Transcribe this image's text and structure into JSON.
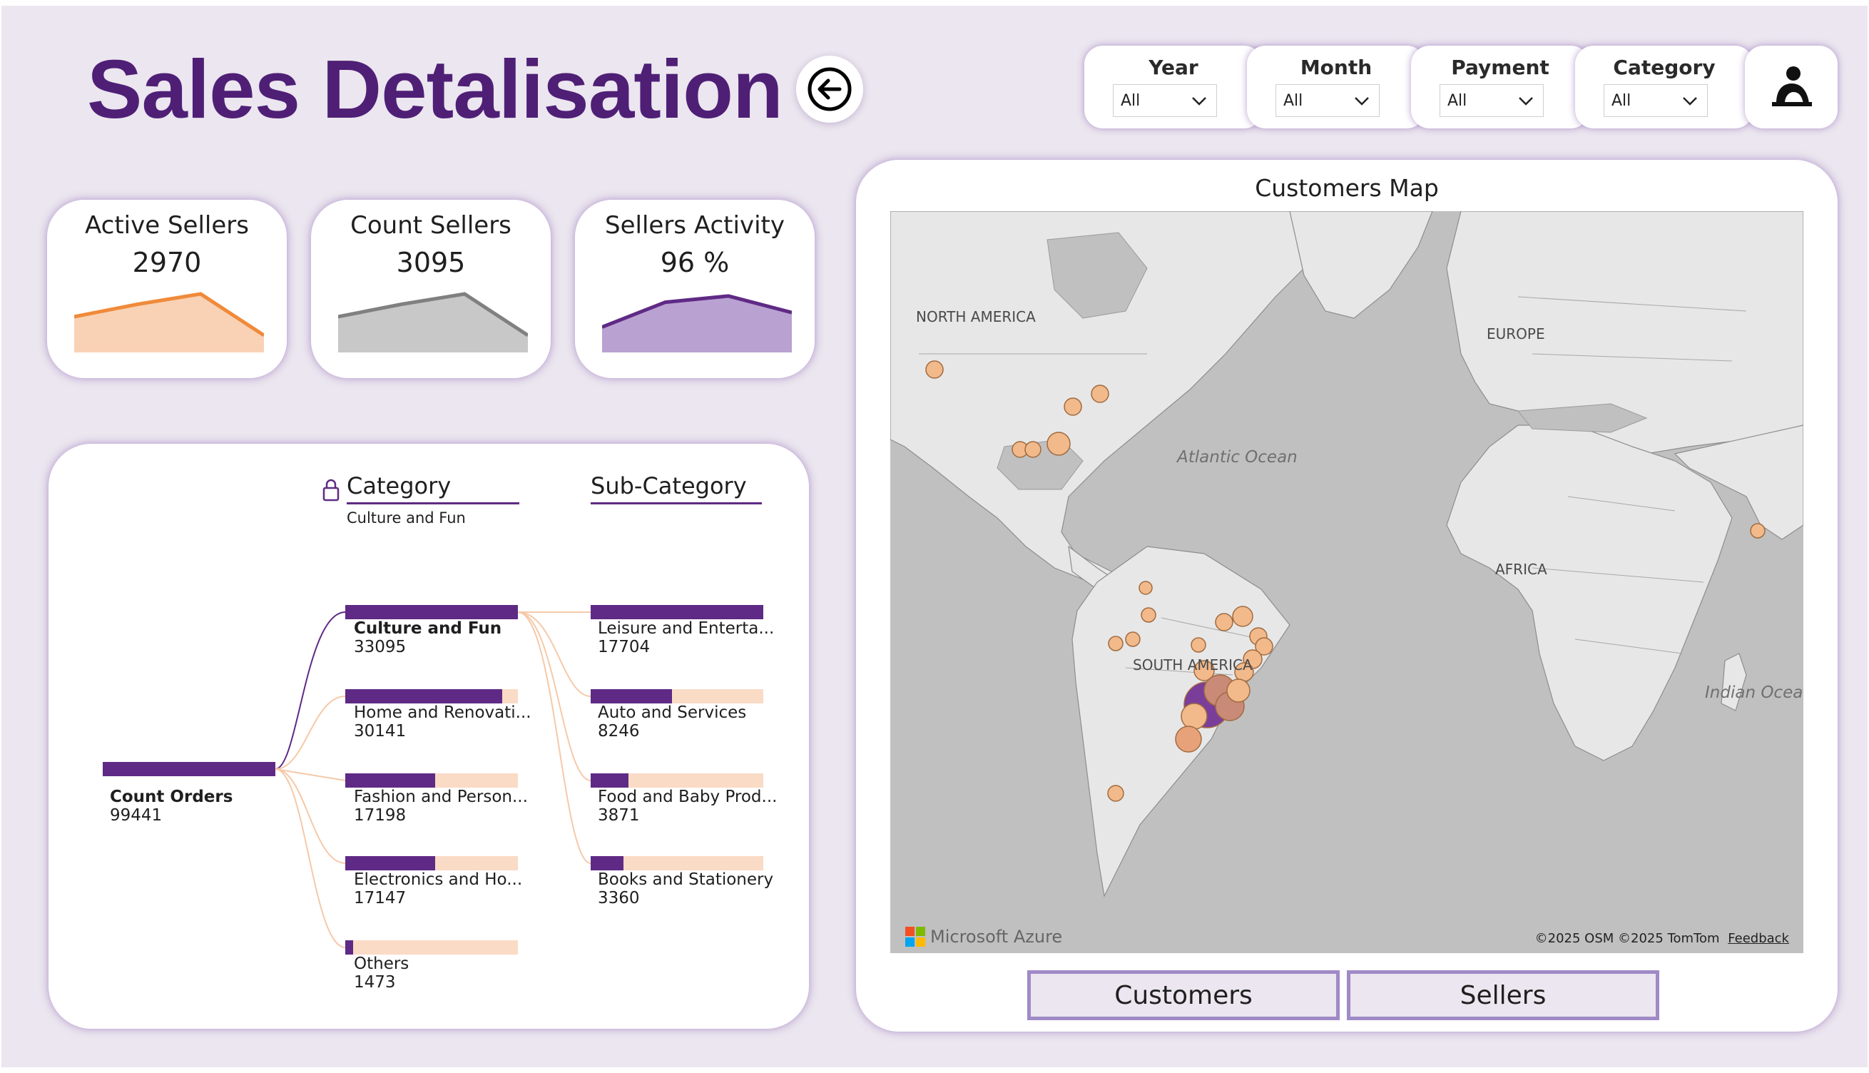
{
  "header": {
    "title": "Sales Detalisation",
    "back_icon": "back-arrow-icon"
  },
  "filters": [
    {
      "label": "Year",
      "value": "All"
    },
    {
      "label": "Month",
      "value": "All"
    },
    {
      "label": "Payment",
      "value": "All"
    },
    {
      "label": "Category",
      "value": "All"
    }
  ],
  "profile_icon": "person-icon",
  "kpis": [
    {
      "label": "Active Sellers",
      "value": "2970",
      "color": "#f08a3a",
      "fill": "#f9d2b5",
      "trend": [
        0.45,
        0.75,
        1.0,
        0.0
      ]
    },
    {
      "label": "Count Sellers",
      "value": "3095",
      "color": "#808080",
      "fill": "#c8c8c8",
      "trend": [
        0.45,
        0.75,
        1.0,
        0.0
      ]
    },
    {
      "label": "Sellers Activity",
      "value": "96 %",
      "color": "#5f2a85",
      "fill": "#b9a2d2",
      "trend": [
        0.2,
        0.8,
        0.95,
        0.55
      ]
    }
  ],
  "tree": {
    "category_header": "Category",
    "category_selected": "Culture and Fun",
    "subcategory_header": "Sub-Category",
    "root": {
      "name": "Count Orders",
      "value": "99441",
      "share": 1.0
    },
    "categories": [
      {
        "name": "Culture and Fun",
        "value": "33095",
        "share": 1.0,
        "bold": true
      },
      {
        "name": "Home and Renovati...",
        "value": "30141",
        "share": 0.91
      },
      {
        "name": "Fashion and Person...",
        "value": "17198",
        "share": 0.52
      },
      {
        "name": "Electronics and Ho...",
        "value": "17147",
        "share": 0.52
      },
      {
        "name": "Others",
        "value": "1473",
        "share": 0.045
      }
    ],
    "subcategories": [
      {
        "name": "Leisure and Enterta...",
        "value": "17704",
        "share": 1.0
      },
      {
        "name": "Auto and Services",
        "value": "8246",
        "share": 0.47
      },
      {
        "name": "Food and Baby Prod...",
        "value": "3871",
        "share": 0.22
      },
      {
        "name": "Books and Stationery",
        "value": "3360",
        "share": 0.19
      }
    ],
    "accent": "#5f2a85",
    "track": "#f9dbc6"
  },
  "map": {
    "title": "Customers Map",
    "labels": {
      "na": "NORTH AMERICA",
      "eu": "EUROPE",
      "af": "AFRICA",
      "sa": "SOUTH AMERICA",
      "atl": "Atlantic Ocean",
      "ind": "Indian Ocean"
    },
    "brand": "Microsoft Azure",
    "attribution": "©2025 OSM  ©2025 TomTom",
    "feedback": "Feedback"
  },
  "toggles": {
    "customers": "Customers",
    "sellers": "Sellers"
  }
}
